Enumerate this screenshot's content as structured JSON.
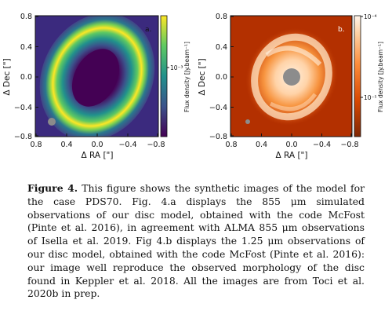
{
  "panel_a": {
    "tag": "a.",
    "ylabel": "Δ Dec [\"]",
    "xlabel": "Δ RA [\"]",
    "cbar_label": "Flux density [Jy.beam⁻¹]",
    "cbar_tick": "10⁻³",
    "yticks": [
      "0.8",
      "0.4",
      "0.0",
      "−0.4",
      "−0.8"
    ],
    "xticks": [
      "0.8",
      "0.4",
      "0.0",
      "−0.4",
      "−0.8"
    ]
  },
  "panel_b": {
    "tag": "b.",
    "ylabel": "Δ Dec [\"]",
    "xlabel": "Δ RA [\"]",
    "cbar_label": "Flux density [Jy.beam⁻¹]",
    "cbar_tick_top": "10⁻⁴",
    "cbar_tick_bottom": "10⁻⁵",
    "yticks": [
      "0.8",
      "0.4",
      "0.0",
      "−0.4",
      "−0.8"
    ],
    "xticks": [
      "0.8",
      "0.4",
      "0.0",
      "−0.4",
      "−0.8"
    ]
  },
  "caption": {
    "heading": "Figure 4.",
    "text": " This figure shows the synthetic images of the model for the case PDS70. Fig. 4.a displays the 855 μm simulated observations of our disc model, obtained with the code McFost (Pinte et al. 2016), in agreement with ALMA 855 μm observations of Isella et al. 2019. Fig 4.b displays the 1.25 μm observations of our disc model, obtained with the code McFost (Pinte et al. 2016): our image well reproduce the observed morphology of the disc found in Keppler et al. 2018. All the images are from Toci et al. 2020b in prep."
  },
  "colors": {
    "viridis_dark": "#440154",
    "viridis_yellow": "#fde725",
    "orange_dark": "#b33000",
    "orange_light": "#ffe6c8"
  }
}
